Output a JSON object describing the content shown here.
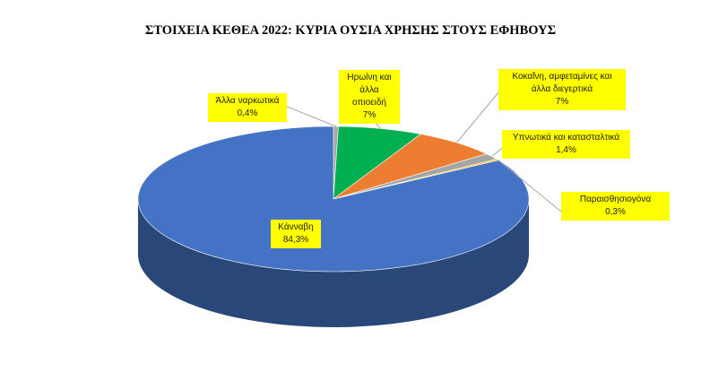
{
  "chart_data": {
    "type": "pie",
    "title": "ΣΤΟΙΧΕΙΑ ΚΕΘΕΑ 2022: ΚΥΡΙΑ ΟΥΣΙΑ ΧΡΗΣΗΣ ΣΤΟΥΣ ΕΦΗΒΟΥΣ",
    "categories": [
      "Άλλα ναρκωτικά",
      "Ηρωίνη και άλλα οπιοειδή",
      "Κοκαΐνη, αμφεταμίνες και άλλα διεγερτικά",
      "Υπνωτικά και κατασταλτικά",
      "Παραισθησιογόνα",
      "Κάνναβη"
    ],
    "values": [
      0.4,
      7,
      7,
      1.4,
      0.3,
      84.3
    ],
    "value_labels": [
      "0,4%",
      "7%",
      "7%",
      "1,4%",
      "0,3%",
      "84,3%"
    ],
    "colors": [
      "#a5a5a5",
      "#00b050",
      "#ed7d31",
      "#a5a5a5",
      "#ffc000",
      "#4472c4"
    ]
  }
}
